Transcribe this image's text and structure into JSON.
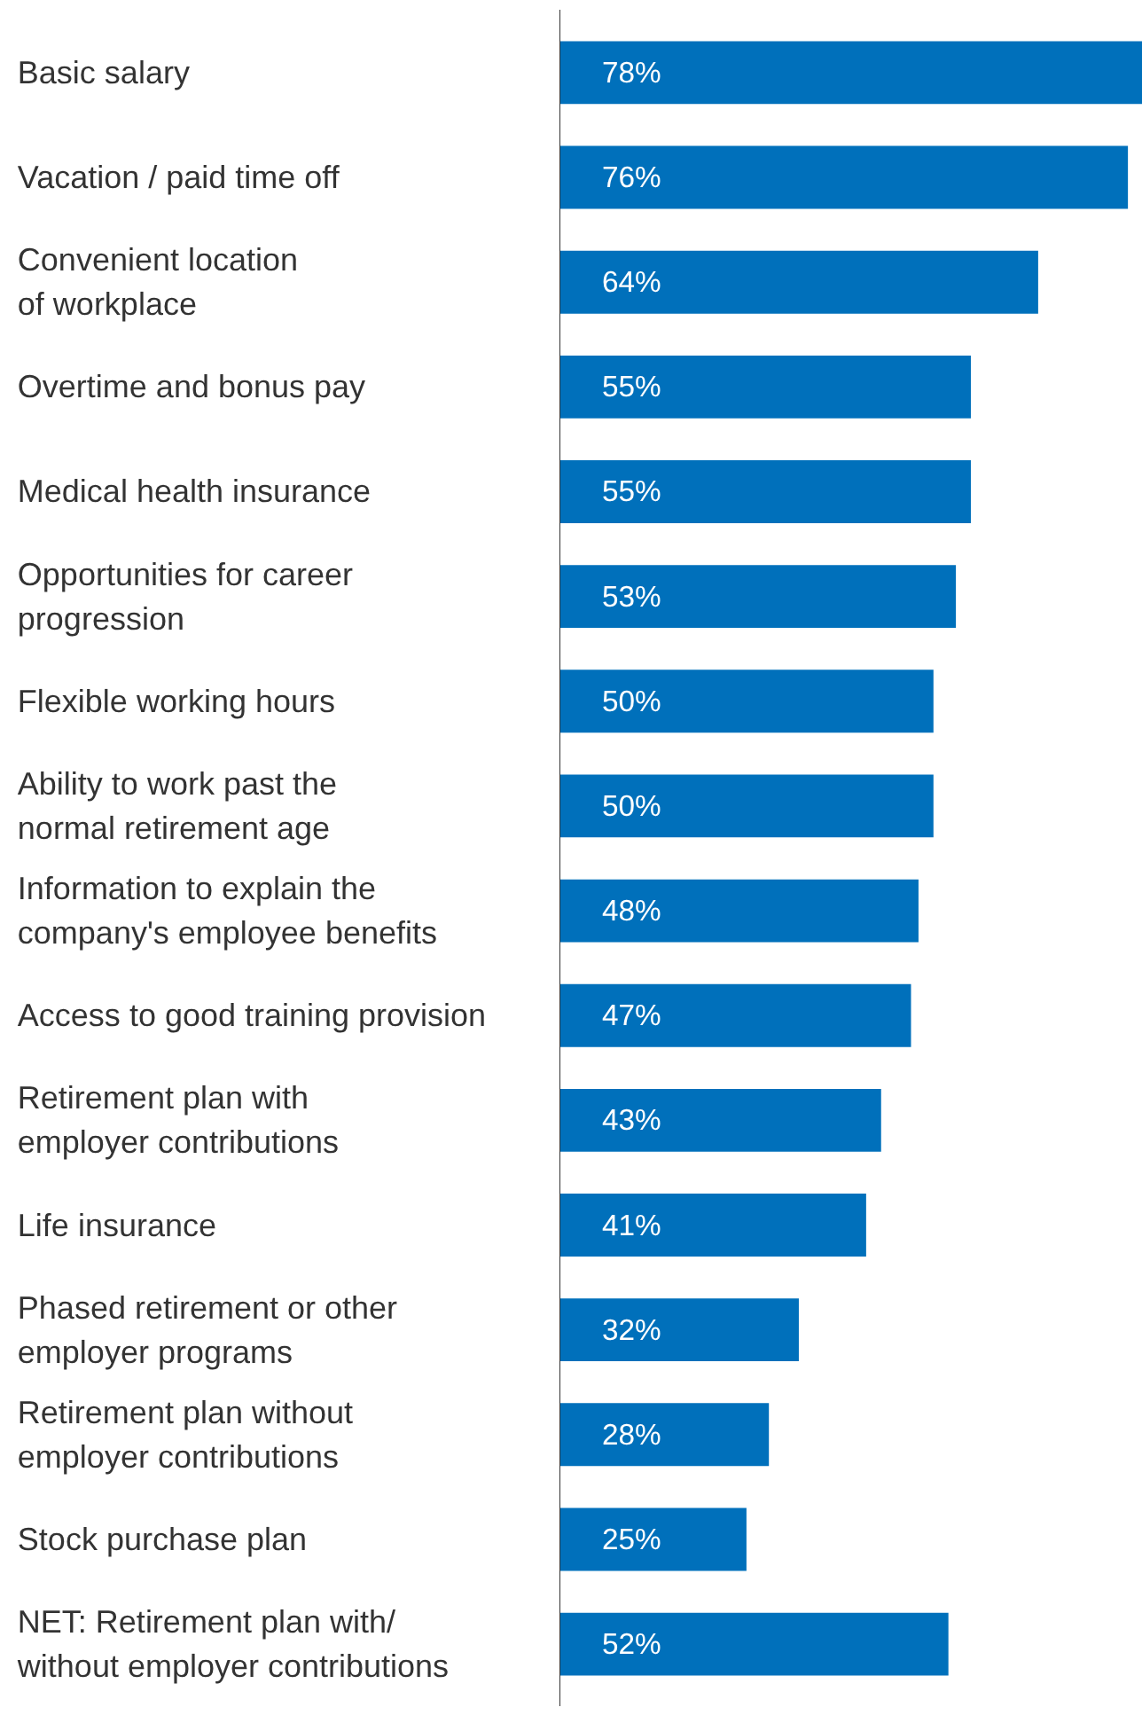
{
  "chart_data": {
    "type": "bar",
    "orientation": "horizontal",
    "categories": [
      "Basic salary",
      "Vacation / paid time off",
      "Convenient location\nof workplace",
      "Overtime and bonus pay",
      "Medical health insurance",
      "Opportunities for career\nprogression",
      "Flexible working hours",
      "Ability to work past the\nnormal retirement age",
      "Information to explain the\ncompany's employee benefits",
      "Access to good training provision",
      "Retirement plan with\nemployer contributions",
      "Life insurance",
      "Phased retirement or other\nemployer programs",
      "Retirement plan without\nemployer contributions",
      "Stock purchase plan",
      "NET: Retirement plan with/\nwithout employer contributions"
    ],
    "values": [
      78,
      76,
      64,
      55,
      55,
      53,
      50,
      50,
      48,
      47,
      43,
      41,
      32,
      28,
      25,
      52
    ],
    "value_labels": [
      "78%",
      "76%",
      "64%",
      "55%",
      "55%",
      "53%",
      "50%",
      "50%",
      "48%",
      "47%",
      "43%",
      "41%",
      "32%",
      "28%",
      "25%",
      "52%"
    ],
    "color": "#0070bb",
    "xlim": [
      0,
      78
    ],
    "grid": false,
    "legend": false
  }
}
